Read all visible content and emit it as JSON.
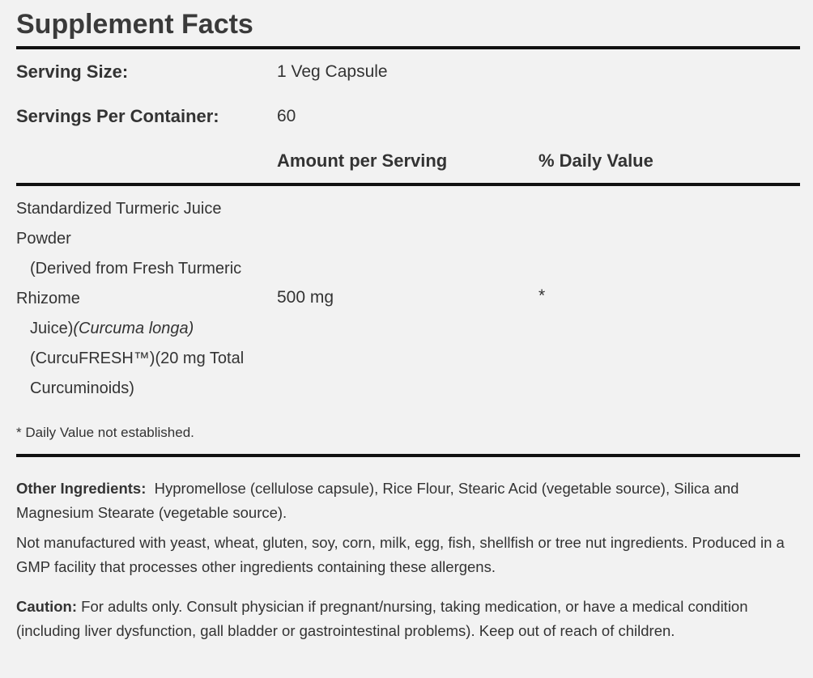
{
  "facts": {
    "title": "Supplement Facts",
    "serving_size_label": "Serving Size:",
    "serving_size_value": "1 Veg Capsule",
    "servings_per_container_label": "Servings Per Container:",
    "servings_per_container_value": "60",
    "amount_header": "Amount per Serving",
    "daily_value_header": "% Daily Value",
    "ingredient": {
      "lines": [
        "Standardized Turmeric Juice",
        "Powder",
        "(Derived from Fresh Turmeric",
        "Rhizome",
        "Juice)",
        "(Curcuma longa)",
        "(CurcuFRESH™)(20 mg Total",
        "Curcuminoids)"
      ],
      "amount": "500 mg",
      "daily_value": "*"
    },
    "footnote": "* Daily Value not established."
  },
  "other_ingredients": {
    "label": "Other Ingredients:",
    "text": "Hypromellose (cellulose capsule), Rice Flour, Stearic Acid (vegetable source), Silica and Magnesium Stearate (vegetable source)."
  },
  "allergen_statement": "Not manufactured with yeast, wheat, gluten, soy, corn, milk, egg, fish, shellfish or tree nut ingredients. Produced in a GMP facility that processes other ingredients containing these allergens.",
  "caution": {
    "label": "Caution:",
    "text": "For adults only. Consult physician if pregnant/nursing, taking medication, or have a medical condition (including liver dysfunction, gall bladder or gastrointestinal problems). Keep out of reach of children."
  }
}
